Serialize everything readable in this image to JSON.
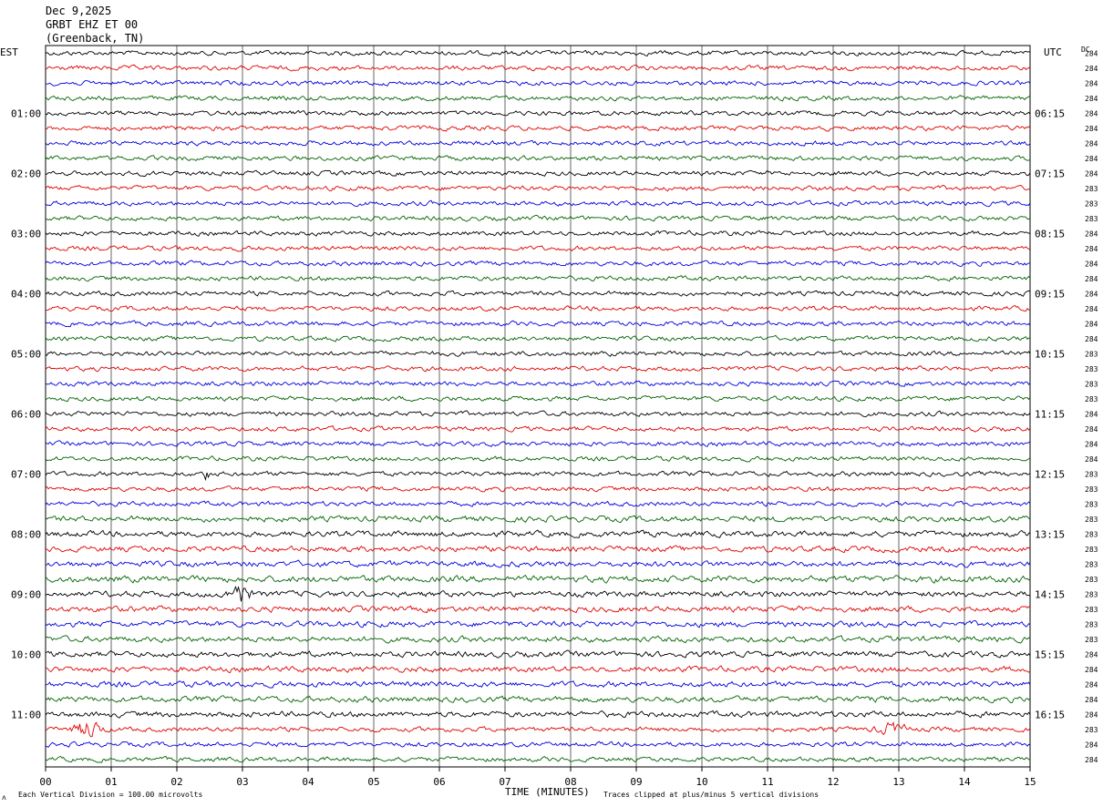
{
  "header": {
    "date": "Dec 9,2025",
    "station": "GRBT EHZ ET 00",
    "location": "(Greenback, TN)"
  },
  "left_tz_label": "EST",
  "right_tz_label": "UTC",
  "dc_label": "DC",
  "footer": {
    "scale_note": "Each Vertical Division =  100.00 microvolts",
    "xlabel": "TIME (MINUTES)",
    "clip_note": "Traces clipped at plus/minus 5 vertical divisions"
  },
  "chart_data": {
    "type": "line",
    "subtype": "helicorder",
    "xlabel": "TIME (MINUTES)",
    "xlim": [
      0,
      15
    ],
    "x_tick_labels": [
      "00",
      "01",
      "02",
      "03",
      "04",
      "05",
      "06",
      "07",
      "08",
      "09",
      "10",
      "11",
      "12",
      "13",
      "14",
      "15"
    ],
    "minutes_per_line": 15,
    "num_lines": 48,
    "trace_colors": [
      "#000000",
      "#e00000",
      "#0000e0",
      "#006400"
    ],
    "left_hour_labels": [
      "01:00",
      "02:00",
      "03:00",
      "04:00",
      "05:00",
      "06:00",
      "07:00",
      "08:00",
      "09:00",
      "10:00",
      "11:00"
    ],
    "right_hour_labels": [
      "06:15",
      "07:15",
      "08:15",
      "09:15",
      "10:15",
      "11:15",
      "12:15",
      "13:15",
      "14:15",
      "15:15",
      "16:15"
    ],
    "dc_offsets": [
      "284",
      "284",
      "284",
      "284",
      "284",
      "284",
      "284",
      "284",
      "284",
      "283",
      "283",
      "283",
      "284",
      "284",
      "284",
      "284",
      "284",
      "284",
      "284",
      "284",
      "283",
      "283",
      "283",
      "283",
      "284",
      "284",
      "284",
      "284",
      "283",
      "283",
      "283",
      "283",
      "283",
      "283",
      "283",
      "283",
      "283",
      "283",
      "283",
      "283",
      "284",
      "284",
      "284",
      "284",
      "284",
      "283",
      "284",
      "284"
    ],
    "events": [
      {
        "line": 28,
        "minute": 2.45,
        "label": "small spike"
      },
      {
        "line": 36,
        "minute": 2.9,
        "label": "local event burst"
      },
      {
        "line": 45,
        "minute": 0.65,
        "label": "burst"
      },
      {
        "line": 45,
        "minute": 12.9,
        "label": "burst"
      }
    ],
    "grid": true
  }
}
